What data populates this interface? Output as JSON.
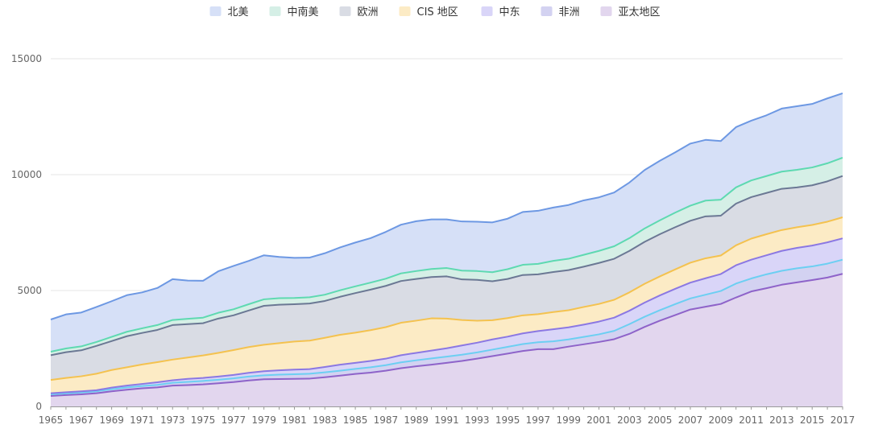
{
  "chart_data": {
    "type": "area",
    "stacked": true,
    "title": "",
    "xlabel": "",
    "ylabel": "",
    "ylim": [
      0,
      15000
    ],
    "y_ticks": [
      0,
      5000,
      10000,
      15000
    ],
    "grid": true,
    "legend_position": "top-center",
    "x": [
      1965,
      1966,
      1967,
      1968,
      1969,
      1970,
      1971,
      1972,
      1973,
      1974,
      1975,
      1976,
      1977,
      1978,
      1979,
      1980,
      1981,
      1982,
      1983,
      1984,
      1985,
      1986,
      1987,
      1988,
      1989,
      1990,
      1991,
      1992,
      1993,
      1994,
      1995,
      1996,
      1997,
      1998,
      1999,
      2000,
      2001,
      2002,
      2003,
      2004,
      2005,
      2006,
      2007,
      2008,
      2009,
      2010,
      2011,
      2012,
      2013,
      2014,
      2015,
      2016,
      2017
    ],
    "x_tick_labels": [
      "1965",
      "1967",
      "1969",
      "1971",
      "1973",
      "1975",
      "1977",
      "1979",
      "1981",
      "1983",
      "1985",
      "1987",
      "1989",
      "1991",
      "1993",
      "1995",
      "1997",
      "1999",
      "2001",
      "2003",
      "2005",
      "2007",
      "2009",
      "2011",
      "2013",
      "2015",
      "2017"
    ],
    "series": [
      {
        "name": "亚太地区",
        "line_color": "#8e63c9",
        "fill_color": "#e2d6ee",
        "values": [
          450,
          490,
          520,
          570,
          650,
          720,
          780,
          820,
          900,
          920,
          950,
          1000,
          1050,
          1120,
          1170,
          1180,
          1190,
          1200,
          1260,
          1330,
          1400,
          1460,
          1540,
          1650,
          1730,
          1800,
          1880,
          1960,
          2060,
          2170,
          2280,
          2390,
          2470,
          2470,
          2580,
          2680,
          2780,
          2900,
          3130,
          3430,
          3700,
          3940,
          4180,
          4300,
          4420,
          4700,
          4960,
          5100,
          5250,
          5350,
          5450,
          5560,
          5720
        ]
      },
      {
        "name": "非洲",
        "line_color": "#6ccff2",
        "fill_color": "#d3d2f1",
        "values": [
          70,
          70,
          80,
          80,
          90,
          100,
          100,
          110,
          120,
          140,
          150,
          150,
          160,
          170,
          170,
          190,
          200,
          210,
          210,
          210,
          220,
          230,
          240,
          250,
          260,
          270,
          270,
          270,
          270,
          280,
          290,
          300,
          300,
          340,
          310,
          320,
          330,
          360,
          420,
          440,
          450,
          470,
          480,
          520,
          560,
          600,
          560,
          600,
          600,
          610,
          590,
          600,
          610
        ]
      },
      {
        "name": "中东",
        "line_color": "#8b78e3",
        "fill_color": "#d9d5f8",
        "values": [
          50,
          50,
          50,
          50,
          70,
          80,
          90,
          110,
          110,
          130,
          130,
          140,
          150,
          160,
          180,
          190,
          200,
          200,
          230,
          260,
          260,
          270,
          280,
          310,
          320,
          340,
          360,
          400,
          420,
          440,
          440,
          460,
          480,
          520,
          520,
          530,
          550,
          570,
          580,
          610,
          640,
          660,
          680,
          710,
          730,
          790,
          810,
          820,
          860,
          880,
          900,
          920,
          920
        ]
      },
      {
        "name": "CIS 地区",
        "line_color": "#f4c24f",
        "fill_color": "#fcebc5",
        "values": [
          570,
          620,
          650,
          710,
          760,
          790,
          840,
          870,
          890,
          920,
          970,
          1020,
          1070,
          1110,
          1140,
          1170,
          1210,
          1230,
          1260,
          1290,
          1300,
          1330,
          1360,
          1400,
          1390,
          1390,
          1280,
          1100,
          950,
          830,
          800,
          780,
          730,
          740,
          740,
          760,
          760,
          770,
          790,
          810,
          820,
          840,
          860,
          860,
          800,
          860,
          910,
          910,
          900,
          890,
          890,
          890,
          910
        ]
      },
      {
        "name": "欧洲",
        "line_color": "#6b7894",
        "fill_color": "#d9dce4",
        "values": [
          1070,
          1110,
          1120,
          1200,
          1250,
          1340,
          1360,
          1390,
          1490,
          1440,
          1390,
          1480,
          1500,
          1580,
          1680,
          1660,
          1610,
          1600,
          1590,
          1640,
          1710,
          1750,
          1780,
          1800,
          1800,
          1780,
          1820,
          1750,
          1760,
          1680,
          1690,
          1740,
          1720,
          1730,
          1730,
          1740,
          1770,
          1770,
          1790,
          1810,
          1820,
          1820,
          1810,
          1810,
          1720,
          1800,
          1790,
          1780,
          1780,
          1720,
          1710,
          1740,
          1780
        ]
      },
      {
        "name": "中南美",
        "line_color": "#5ed9b1",
        "fill_color": "#d5efe6",
        "values": [
          150,
          160,
          170,
          170,
          180,
          190,
          200,
          210,
          220,
          230,
          240,
          250,
          260,
          270,
          280,
          280,
          270,
          270,
          270,
          280,
          290,
          300,
          310,
          330,
          340,
          350,
          360,
          380,
          380,
          390,
          420,
          440,
          450,
          480,
          490,
          510,
          520,
          540,
          550,
          580,
          600,
          630,
          650,
          680,
          690,
          700,
          720,
          730,
          740,
          760,
          770,
          780,
          790
        ]
      },
      {
        "name": "北美",
        "line_color": "#6d98e3",
        "fill_color": "#d6e0f7",
        "values": [
          1390,
          1470,
          1460,
          1510,
          1540,
          1580,
          1550,
          1600,
          1760,
          1650,
          1590,
          1790,
          1870,
          1870,
          1900,
          1780,
          1730,
          1710,
          1790,
          1850,
          1890,
          1920,
          2020,
          2100,
          2150,
          2140,
          2100,
          2120,
          2130,
          2150,
          2180,
          2280,
          2290,
          2300,
          2320,
          2350,
          2310,
          2320,
          2400,
          2520,
          2570,
          2600,
          2680,
          2620,
          2530,
          2600,
          2580,
          2620,
          2720,
          2740,
          2740,
          2800,
          2780
        ]
      }
    ]
  }
}
